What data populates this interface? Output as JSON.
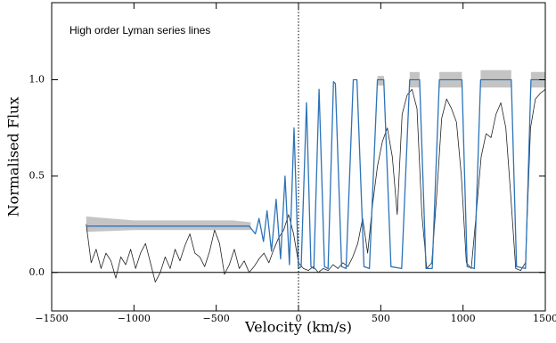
{
  "chart_data": {
    "type": "line",
    "annotation": "High order Lyman series lines",
    "xlabel": "Velocity (km/s)",
    "ylabel": "Normalised Flux",
    "xlim": [
      -1500,
      1500
    ],
    "ylim": [
      -0.2,
      1.4
    ],
    "xticks": [
      {
        "value": -1500,
        "label": "−1500"
      },
      {
        "value": -1000,
        "label": "−1000"
      },
      {
        "value": -500,
        "label": "−500"
      },
      0,
      500,
      1000,
      1500
    ],
    "yticks": [
      {
        "value": 0,
        "label": "0.0"
      },
      0.5,
      {
        "value": 1,
        "label": "1.0"
      }
    ],
    "hlines": [
      0
    ],
    "vlines": [
      0
    ],
    "band": {
      "color": "#c4c4c4",
      "x": [
        -1290,
        -1000,
        -700,
        -400,
        -290,
        -280,
        480,
        520,
        600,
        676,
        736,
        800,
        856,
        993,
        1050,
        1107,
        1293,
        1350,
        1413,
        1500
      ],
      "lower": [
        0.21,
        0.22,
        0.22,
        0.22,
        0.22,
        null,
        0.97,
        0.97,
        null,
        0.96,
        0.96,
        null,
        0.96,
        0.96,
        null,
        0.96,
        0.96,
        null,
        0.96,
        0.96
      ],
      "upper": [
        0.29,
        0.27,
        0.27,
        0.27,
        0.26,
        null,
        1.02,
        1.02,
        null,
        1.04,
        1.04,
        null,
        1.04,
        1.04,
        null,
        1.05,
        1.05,
        null,
        1.04,
        1.04
      ]
    },
    "series": [
      {
        "color": "#222222",
        "x": [
          -1290,
          -1260,
          -1230,
          -1200,
          -1170,
          -1140,
          -1110,
          -1080,
          -1050,
          -1020,
          -990,
          -960,
          -930,
          -900,
          -870,
          -840,
          -810,
          -780,
          -750,
          -720,
          -690,
          -660,
          -630,
          -600,
          -570,
          -540,
          -510,
          -480,
          -450,
          -420,
          -390,
          -360,
          -330,
          -300,
          -270,
          -240,
          -210,
          -180,
          -150,
          -120,
          -90,
          -60,
          -30,
          0,
          30,
          60,
          90,
          120,
          150,
          180,
          210,
          240,
          270,
          300,
          330,
          360,
          390,
          420,
          450,
          480,
          510,
          540,
          570,
          600,
          630,
          660,
          690,
          720,
          750,
          780,
          810,
          840,
          870,
          900,
          930,
          960,
          990,
          1020,
          1050,
          1080,
          1110,
          1140,
          1170,
          1200,
          1230,
          1260,
          1290,
          1320,
          1350,
          1380,
          1410,
          1440,
          1470,
          1500
        ],
        "values": [
          0.25,
          0.05,
          0.12,
          0.02,
          0.1,
          0.06,
          -0.03,
          0.08,
          0.04,
          0.12,
          0.02,
          0.1,
          0.15,
          0.05,
          -0.05,
          0.0,
          0.08,
          0.02,
          0.12,
          0.06,
          0.14,
          0.2,
          0.1,
          0.08,
          0.03,
          0.11,
          0.22,
          0.15,
          -0.01,
          0.04,
          0.12,
          0.02,
          0.06,
          0.0,
          0.03,
          0.07,
          0.1,
          0.05,
          0.12,
          0.18,
          0.22,
          0.3,
          0.2,
          0.05,
          0.02,
          0.01,
          0.03,
          0.0,
          0.02,
          0.01,
          0.04,
          0.02,
          0.05,
          0.03,
          0.08,
          0.15,
          0.28,
          0.1,
          0.35,
          0.55,
          0.68,
          0.75,
          0.6,
          0.3,
          0.82,
          0.92,
          0.95,
          0.85,
          0.3,
          0.02,
          0.05,
          0.4,
          0.8,
          0.9,
          0.85,
          0.78,
          0.5,
          0.05,
          0.02,
          0.3,
          0.6,
          0.72,
          0.7,
          0.82,
          0.88,
          0.75,
          0.4,
          0.02,
          0.01,
          0.05,
          0.75,
          0.9,
          0.93,
          0.95
        ]
      },
      {
        "color": "#2c73b8",
        "x": [
          -1290,
          -1000,
          -700,
          -400,
          -300,
          -262,
          -240,
          -213,
          -191,
          -164,
          -136,
          -109,
          -82,
          -55,
          -27,
          0,
          16,
          49,
          76,
          93,
          125,
          158,
          180,
          213,
          224,
          262,
          289,
          333,
          355,
          398,
          431,
          480,
          518,
          562,
          627,
          676,
          736,
          775,
          813,
          856,
          993,
          1025,
          1069,
          1107,
          1293,
          1325,
          1380,
          1413,
          1500
        ],
        "values": [
          0.24,
          0.24,
          0.24,
          0.24,
          0.24,
          0.2,
          0.28,
          0.16,
          0.32,
          0.11,
          0.38,
          0.07,
          0.5,
          0.04,
          0.75,
          0.02,
          0.03,
          0.88,
          0.03,
          0.02,
          0.95,
          0.03,
          0.02,
          0.99,
          0.98,
          0.03,
          0.02,
          1.0,
          1.0,
          0.03,
          0.02,
          1.0,
          1.0,
          0.03,
          0.02,
          1.0,
          1.0,
          0.02,
          0.02,
          1.0,
          1.0,
          0.03,
          0.02,
          1.0,
          1.0,
          0.03,
          0.02,
          1.0,
          1.0
        ]
      }
    ]
  }
}
